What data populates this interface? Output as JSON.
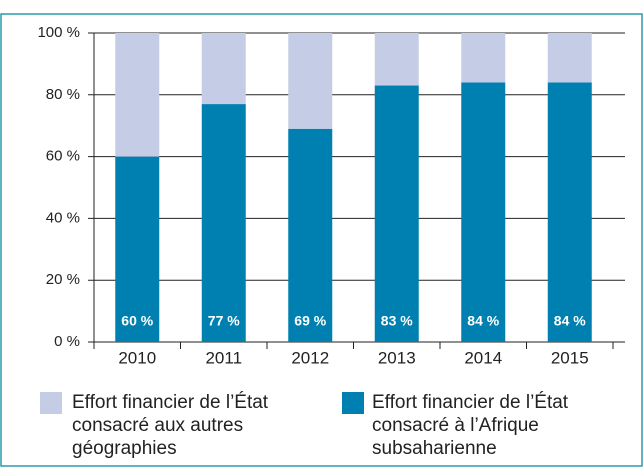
{
  "chart_data": {
    "type": "stacked_bar",
    "categories": [
      "2010",
      "2011",
      "2012",
      "2013",
      "2014",
      "2015"
    ],
    "series": [
      {
        "name": "Effort financier de l’État consacré à l’Afrique subsaharienne",
        "color": "#0080b0",
        "values": [
          60,
          77,
          69,
          83,
          84,
          84
        ],
        "value_labels": [
          "60 %",
          "77 %",
          "69 %",
          "83 %",
          "84 %",
          "84 %"
        ]
      },
      {
        "name": "Effort financier de l’État consacré aux autres géographies",
        "color": "#c5cde6",
        "values": [
          40,
          23,
          31,
          17,
          16,
          16
        ]
      }
    ],
    "ylim": [
      0,
      100
    ],
    "yticks": [
      {
        "value": 0,
        "label": "0 %"
      },
      {
        "value": 20,
        "label": "20 %"
      },
      {
        "value": 40,
        "label": "40 %"
      },
      {
        "value": 60,
        "label": "60 %"
      },
      {
        "value": 80,
        "label": "80 %"
      },
      {
        "value": 100,
        "label": "100 %"
      }
    ],
    "grid": true
  }
}
